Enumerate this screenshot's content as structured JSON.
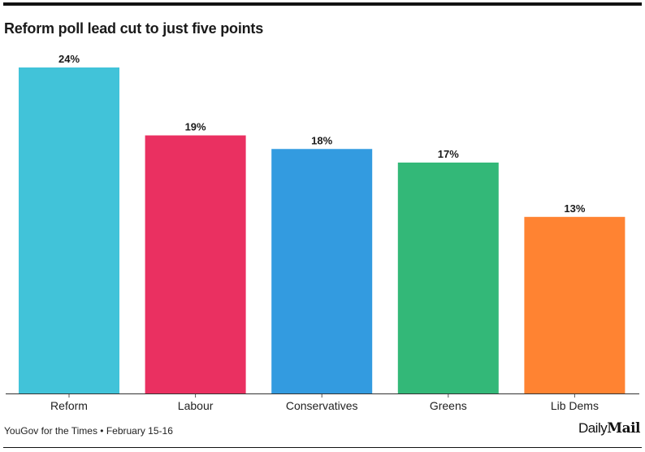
{
  "header": {
    "title": "Reform poll lead cut to just five points"
  },
  "footer": {
    "source": "YouGov for the Times • February 15-16",
    "logo_daily": "Daily",
    "logo_mail": "Mail"
  },
  "chart_data": {
    "type": "bar",
    "title": "Reform poll lead cut to just five points",
    "xlabel": "",
    "ylabel": "",
    "ylim": [
      0,
      24
    ],
    "grid": false,
    "categories": [
      "Reform",
      "Labour",
      "Conservatives",
      "Greens",
      "Lib Dems"
    ],
    "values": [
      24,
      19,
      18,
      17,
      13
    ],
    "labels": [
      "24%",
      "19%",
      "18%",
      "17%",
      "13%"
    ],
    "colors": [
      "#41c3d9",
      "#ea3061",
      "#339be0",
      "#33b878",
      "#ff8332"
    ],
    "unit": "%"
  }
}
